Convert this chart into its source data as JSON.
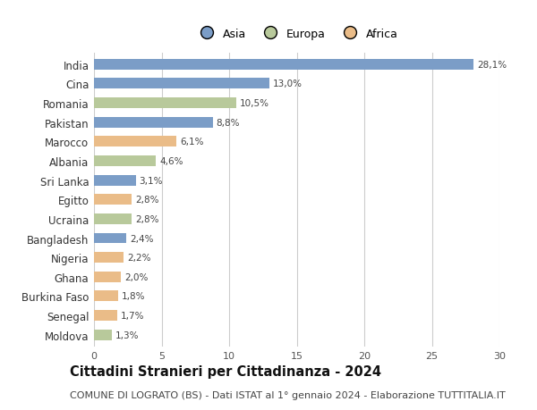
{
  "categories": [
    "India",
    "Cina",
    "Romania",
    "Pakistan",
    "Marocco",
    "Albania",
    "Sri Lanka",
    "Egitto",
    "Ucraina",
    "Bangladesh",
    "Nigeria",
    "Ghana",
    "Burkina Faso",
    "Senegal",
    "Moldova"
  ],
  "values": [
    28.1,
    13.0,
    10.5,
    8.8,
    6.1,
    4.6,
    3.1,
    2.8,
    2.8,
    2.4,
    2.2,
    2.0,
    1.8,
    1.7,
    1.3
  ],
  "continents": [
    "Asia",
    "Asia",
    "Europa",
    "Asia",
    "Africa",
    "Europa",
    "Asia",
    "Africa",
    "Europa",
    "Asia",
    "Africa",
    "Africa",
    "Africa",
    "Africa",
    "Europa"
  ],
  "colors": {
    "Asia": "#7b9dc7",
    "Europa": "#b8c99b",
    "Africa": "#eabc88"
  },
  "xlim": [
    0,
    30
  ],
  "xticks": [
    0,
    5,
    10,
    15,
    20,
    25,
    30
  ],
  "title": "Cittadini Stranieri per Cittadinanza - 2024",
  "subtitle": "COMUNE DI LOGRATO (BS) - Dati ISTAT al 1° gennaio 2024 - Elaborazione TUTTITALIA.IT",
  "title_fontsize": 10.5,
  "subtitle_fontsize": 8,
  "legend_labels": [
    "Asia",
    "Europa",
    "Africa"
  ],
  "background_color": "#ffffff",
  "grid_color": "#cccccc",
  "bar_height": 0.55
}
